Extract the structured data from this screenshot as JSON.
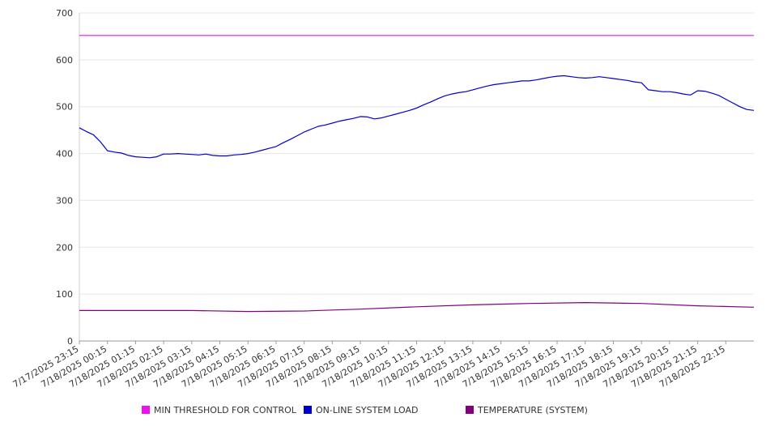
{
  "chart_data": {
    "type": "line",
    "title": "",
    "xlabel": "",
    "ylabel": "",
    "ylim": [
      0,
      700
    ],
    "yticks": [
      0,
      100,
      200,
      300,
      400,
      500,
      600,
      700
    ],
    "grid": true,
    "legend_position": "bottom",
    "x_tick_labels": [
      "7/17/2025 23:15",
      "7/18/2025 00:15",
      "7/18/2025 01:15",
      "7/18/2025 02:15",
      "7/18/2025 03:15",
      "7/18/2025 04:15",
      "7/18/2025 05:15",
      "7/18/2025 06:15",
      "7/18/2025 07:15",
      "7/18/2025 08:15",
      "7/18/2025 09:15",
      "7/18/2025 10:15",
      "7/18/2025 11:15",
      "7/18/2025 12:15",
      "7/18/2025 13:15",
      "7/18/2025 14:15",
      "7/18/2025 15:15",
      "7/18/2025 16:15",
      "7/18/2025 17:15",
      "7/18/2025 18:15",
      "7/18/2025 19:15",
      "7/18/2025 20:15",
      "7/18/2025 21:15",
      "7/18/2025 22:15"
    ],
    "x_end": "7/18/2025 23:15",
    "series": [
      {
        "name": "MIN THRESHOLD FOR CONTROL",
        "color": "#ee11ee",
        "x": [
          "7/17/2025 23:15",
          "7/18/2025 23:15"
        ],
        "values": [
          652,
          652
        ]
      },
      {
        "name": "ON-LINE SYSTEM LOAD",
        "color": "#0000cc",
        "x": [
          "7/17/2025 23:15",
          "7/17/2025 23:30",
          "7/17/2025 23:45",
          "7/18/2025 00:00",
          "7/18/2025 00:15",
          "7/18/2025 00:30",
          "7/18/2025 00:45",
          "7/18/2025 01:00",
          "7/18/2025 01:15",
          "7/18/2025 01:30",
          "7/18/2025 01:45",
          "7/18/2025 02:00",
          "7/18/2025 02:15",
          "7/18/2025 02:30",
          "7/18/2025 02:45",
          "7/18/2025 03:00",
          "7/18/2025 03:15",
          "7/18/2025 03:30",
          "7/18/2025 03:45",
          "7/18/2025 04:00",
          "7/18/2025 04:15",
          "7/18/2025 04:30",
          "7/18/2025 04:45",
          "7/18/2025 05:00",
          "7/18/2025 05:15",
          "7/18/2025 05:30",
          "7/18/2025 05:45",
          "7/18/2025 06:00",
          "7/18/2025 06:15",
          "7/18/2025 06:30",
          "7/18/2025 06:45",
          "7/18/2025 07:00",
          "7/18/2025 07:15",
          "7/18/2025 07:30",
          "7/18/2025 07:45",
          "7/18/2025 08:00",
          "7/18/2025 08:15",
          "7/18/2025 08:30",
          "7/18/2025 08:45",
          "7/18/2025 09:00",
          "7/18/2025 09:15",
          "7/18/2025 09:30",
          "7/18/2025 09:45",
          "7/18/2025 10:00",
          "7/18/2025 10:15",
          "7/18/2025 10:30",
          "7/18/2025 10:45",
          "7/18/2025 11:00",
          "7/18/2025 11:15",
          "7/18/2025 11:30",
          "7/18/2025 11:45",
          "7/18/2025 12:00",
          "7/18/2025 12:15",
          "7/18/2025 12:30",
          "7/18/2025 12:45",
          "7/18/2025 13:00",
          "7/18/2025 13:15",
          "7/18/2025 13:30",
          "7/18/2025 13:45",
          "7/18/2025 14:00",
          "7/18/2025 14:15",
          "7/18/2025 14:30",
          "7/18/2025 14:45",
          "7/18/2025 15:00",
          "7/18/2025 15:15",
          "7/18/2025 15:30",
          "7/18/2025 15:45",
          "7/18/2025 16:00",
          "7/18/2025 16:15",
          "7/18/2025 16:30",
          "7/18/2025 16:45",
          "7/18/2025 17:00",
          "7/18/2025 17:15",
          "7/18/2025 17:30",
          "7/18/2025 17:45",
          "7/18/2025 18:00",
          "7/18/2025 18:15",
          "7/18/2025 18:30",
          "7/18/2025 18:45",
          "7/18/2025 19:00",
          "7/18/2025 19:15",
          "7/18/2025 19:30",
          "7/18/2025 19:45",
          "7/18/2025 20:00",
          "7/18/2025 20:15",
          "7/18/2025 20:30",
          "7/18/2025 20:45",
          "7/18/2025 21:00",
          "7/18/2025 21:15",
          "7/18/2025 21:30",
          "7/18/2025 21:45",
          "7/18/2025 22:00",
          "7/18/2025 22:15",
          "7/18/2025 22:30",
          "7/18/2025 22:45",
          "7/18/2025 23:00",
          "7/18/2025 23:15"
        ],
        "values": [
          455,
          447,
          440,
          425,
          406,
          403,
          401,
          396,
          393,
          392,
          391,
          393,
          399,
          399,
          400,
          399,
          398,
          397,
          399,
          396,
          395,
          395,
          397,
          398,
          400,
          403,
          407,
          411,
          415,
          423,
          430,
          438,
          446,
          452,
          458,
          461,
          465,
          469,
          472,
          475,
          479,
          478,
          474,
          476,
          480,
          484,
          488,
          492,
          497,
          504,
          510,
          517,
          523,
          527,
          530,
          532,
          536,
          540,
          544,
          547,
          549,
          551,
          553,
          555,
          555,
          557,
          560,
          563,
          565,
          566,
          564,
          562,
          561,
          562,
          564,
          562,
          560,
          558,
          556,
          553,
          551,
          536,
          534,
          532,
          532,
          530,
          527,
          525,
          534,
          533,
          529,
          524,
          516,
          508,
          500,
          494,
          492
        ]
      },
      {
        "name": "TEMPERATURE (SYSTEM)",
        "color": "#800080",
        "x": [
          "7/17/2025 23:15",
          "7/18/2025 01:15",
          "7/18/2025 03:15",
          "7/18/2025 05:15",
          "7/18/2025 07:15",
          "7/18/2025 09:15",
          "7/18/2025 11:15",
          "7/18/2025 13:15",
          "7/18/2025 15:15",
          "7/18/2025 17:15",
          "7/18/2025 19:15",
          "7/18/2025 21:15",
          "7/18/2025 23:15"
        ],
        "values": [
          65,
          65,
          65,
          63,
          64,
          68,
          73,
          77,
          80,
          82,
          80,
          75,
          72
        ]
      }
    ]
  }
}
